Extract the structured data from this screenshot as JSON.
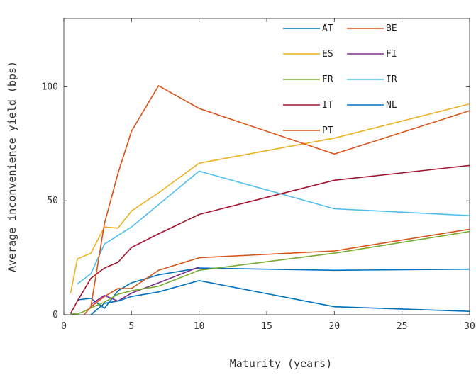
{
  "chart_data": {
    "type": "line",
    "title": "",
    "xlabel": "Maturity (years)",
    "ylabel": "Average inconvenience yield (bps)",
    "xlim": [
      0,
      30
    ],
    "ylim": [
      0,
      130
    ],
    "xticks": [
      0,
      5,
      10,
      15,
      20,
      25,
      30
    ],
    "yticks": [
      0,
      50,
      100
    ],
    "grid": false,
    "legend_position": "top-right",
    "series": [
      {
        "name": "AT",
        "color": "#0072bd",
        "x": [
          1,
          2,
          3,
          4,
          5,
          7,
          10,
          20,
          30
        ],
        "y": [
          6.5,
          7.2,
          2.8,
          10.5,
          14,
          17.5,
          20.5,
          19.5,
          20
        ]
      },
      {
        "name": "BE",
        "color": "#d95319",
        "x": [
          2,
          3,
          4,
          5,
          7,
          10,
          20,
          30
        ],
        "y": [
          3.5,
          8,
          11.5,
          11.5,
          19.5,
          25,
          28,
          37.5
        ]
      },
      {
        "name": "ES",
        "color": "#edb120",
        "x": [
          0.5,
          1,
          2,
          3,
          4,
          5,
          7,
          10,
          20,
          30
        ],
        "y": [
          9.5,
          24.5,
          27,
          38.5,
          38,
          45.5,
          53.5,
          66.5,
          77.5,
          92.5
        ]
      },
      {
        "name": "FI",
        "color": "#7e2f8e",
        "x": [
          2,
          3,
          4,
          5,
          7,
          10
        ],
        "y": [
          4.5,
          8.5,
          6,
          9.5,
          14,
          21
        ]
      },
      {
        "name": "FR",
        "color": "#77ac30",
        "x": [
          0.5,
          1,
          1.5,
          2,
          3,
          4,
          5,
          7,
          10,
          20,
          30
        ],
        "y": [
          0.5,
          0.3,
          1.5,
          3,
          5.5,
          9,
          10.5,
          12.5,
          19.5,
          27,
          36.5
        ]
      },
      {
        "name": "IR",
        "color": "#4dbeee",
        "x": [
          1,
          2,
          3,
          5,
          10,
          20,
          30
        ],
        "y": [
          13.5,
          18,
          31,
          38.5,
          63,
          46.5,
          43.5
        ]
      },
      {
        "name": "IT",
        "color": "#a2142f",
        "x": [
          0.5,
          1,
          2,
          3,
          4,
          5,
          7,
          10,
          20,
          30
        ],
        "y": [
          0.5,
          6,
          16,
          20.5,
          23,
          29.5,
          35.5,
          44,
          59,
          65.5
        ]
      },
      {
        "name": "NL",
        "color": "#0072bd",
        "x": [
          2,
          3,
          4,
          5,
          7,
          10,
          20,
          30
        ],
        "y": [
          0,
          5,
          6,
          8,
          10,
          15,
          3.5,
          1.5
        ]
      },
      {
        "name": "PT",
        "color": "#d95319",
        "x": [
          1.5,
          2,
          3,
          4,
          5,
          7,
          10,
          20,
          30
        ],
        "y": [
          0,
          3.5,
          40,
          62,
          80.5,
          100.5,
          90.5,
          70.5,
          89.5
        ]
      }
    ]
  }
}
